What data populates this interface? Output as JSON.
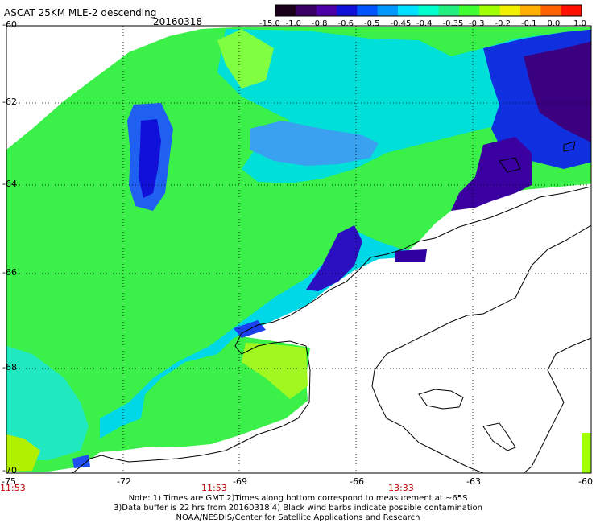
{
  "header": {
    "title": "ASCAT 25KM MLE-2 descending",
    "date": "20160318"
  },
  "colorbar": {
    "labels": [
      "-15.0",
      "-1.0",
      "-0.8",
      "-0.6",
      "-0.5",
      "-0.45",
      "-0.4",
      "-0.35",
      "-0.3",
      "-0.2",
      "-0.1",
      "0.0",
      "1.0"
    ],
    "colors": [
      "#1a001a",
      "#3a0066",
      "#4b00a8",
      "#1010d8",
      "#0055ff",
      "#0099ff",
      "#00e0ff",
      "#00ffcc",
      "#20f080",
      "#40ff30",
      "#a0ff00",
      "#f0f000",
      "#ffb000",
      "#ff6000",
      "#ff1000"
    ]
  },
  "axes": {
    "lat_labels": [
      "-60",
      "-62",
      "-64",
      "-66",
      "-68",
      "-70"
    ],
    "lon_labels": [
      "-75",
      "-72",
      "-69",
      "-66",
      "-63",
      "-60"
    ],
    "time_labels": [
      "11:53",
      "11:53",
      "13:33"
    ]
  },
  "notes": {
    "line1": "Note: 1) Times are GMT 2)Times along bottom correspond to measurement at ~65S",
    "line2": "3)Data buffer is 22 hrs from 20160318 4) Black wind barbs indicate possible contamination",
    "line3": "NOAA/NESDIS/Center for Satellite Applications and Research"
  }
}
